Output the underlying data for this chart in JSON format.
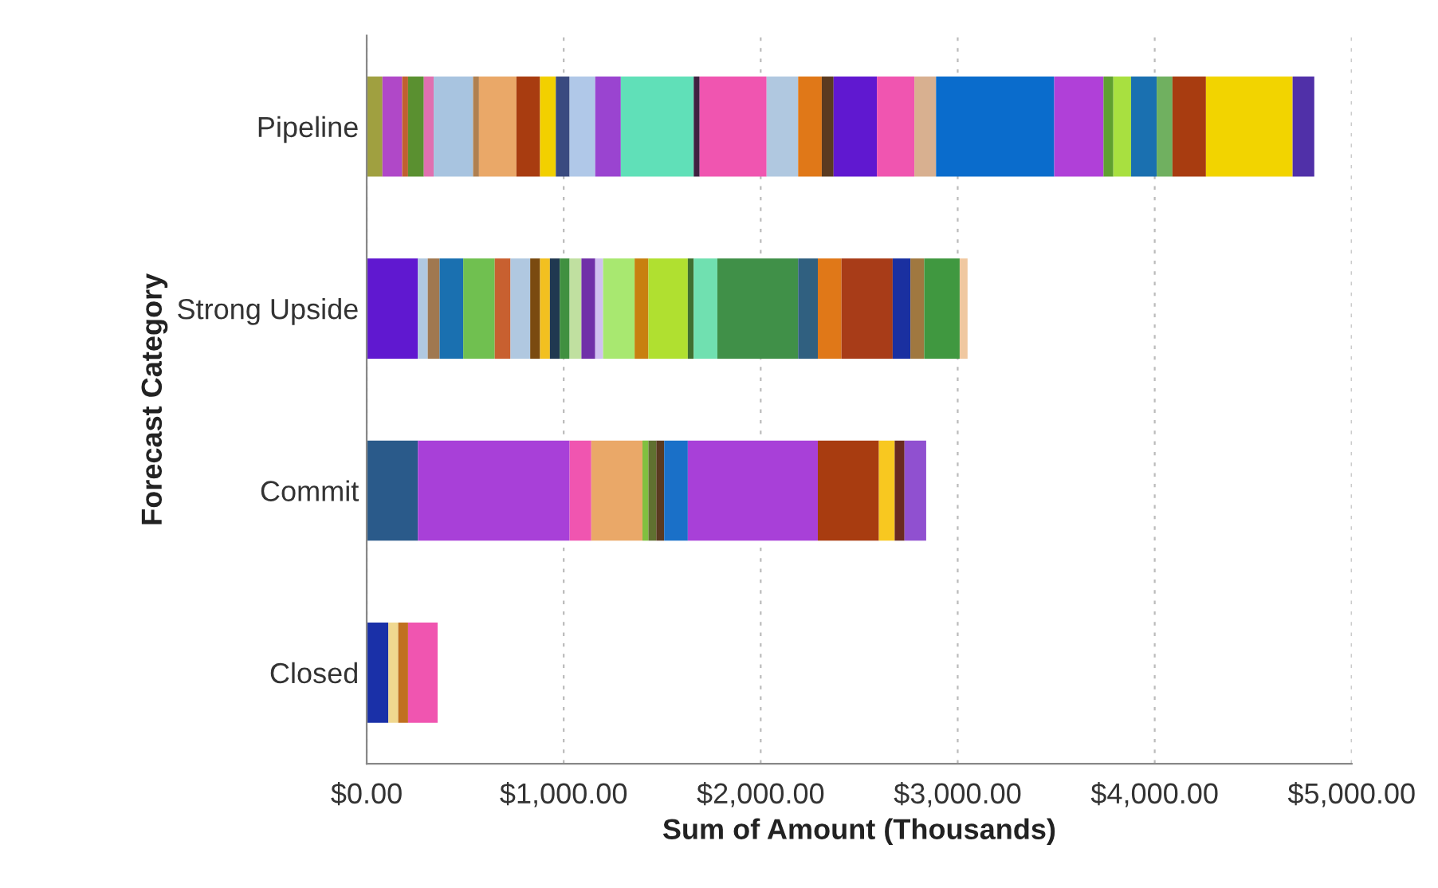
{
  "chart_data": {
    "type": "bar",
    "orientation": "horizontal",
    "stacked": true,
    "xlabel": "Sum of Amount (Thousands)",
    "ylabel": "Forecast Category",
    "categories": [
      "Pipeline",
      "Strong Upside",
      "Commit",
      "Closed"
    ],
    "xlim": [
      0,
      5000
    ],
    "xticks": [
      {
        "value": 0,
        "label": "$0.00"
      },
      {
        "value": 1000,
        "label": "$1,000.00"
      },
      {
        "value": 2000,
        "label": "$2,000.00"
      },
      {
        "value": 3000,
        "label": "$3,000.00"
      },
      {
        "value": 4000,
        "label": "$4,000.00"
      },
      {
        "value": 5000,
        "label": "$5,000.00"
      }
    ],
    "grid": "x",
    "series": [
      {
        "values": [
          80,
          260,
          260,
          110
        ],
        "colors": [
          "#a0a040",
          "#6018d0",
          "#2a5a8a",
          "#1a30a8"
        ]
      },
      {
        "values": [
          100,
          50,
          770,
          50
        ],
        "colors": [
          "#b048c8",
          "#b0c8e0",
          "#a840d8",
          "#f0d890"
        ]
      },
      {
        "values": [
          30,
          60,
          110,
          50
        ],
        "colors": [
          "#c06030",
          "#a07850",
          "#f055b0",
          "#c07020"
        ]
      },
      {
        "values": [
          80,
          120,
          260,
          150
        ],
        "colors": [
          "#5a9030",
          "#1a70b0",
          "#eaa868",
          "#f055b0"
        ]
      },
      {
        "values": [
          50,
          160,
          30,
          null
        ],
        "colors": [
          "#e070b0",
          "#70c050",
          "#80c040",
          null
        ]
      },
      {
        "values": [
          200,
          80,
          40,
          null
        ],
        "colors": [
          "#a8c4e0",
          "#c86030",
          "#607030",
          null
        ]
      },
      {
        "values": [
          30,
          100,
          40,
          null
        ],
        "colors": [
          "#b08050",
          "#b0c8e0",
          "#5a3a20",
          null
        ]
      },
      {
        "values": [
          190,
          50,
          120,
          null
        ],
        "colors": [
          "#eaa868",
          "#7a4a10",
          "#1a70c8",
          null
        ]
      },
      {
        "values": [
          120,
          50,
          660,
          null
        ],
        "colors": [
          "#a83c10",
          "#f2c020",
          "#a840d8",
          null
        ]
      },
      {
        "values": [
          80,
          50,
          310,
          null
        ],
        "colors": [
          "#f2d000",
          "#203850",
          "#a83c10",
          null
        ]
      },
      {
        "values": [
          70,
          50,
          80,
          null
        ],
        "colors": [
          "#3a4a80",
          "#409040",
          "#f8c820",
          null
        ]
      },
      {
        "values": [
          130,
          60,
          50,
          null
        ],
        "colors": [
          "#b0c8e8",
          "#c0e0a0",
          "#6a2a20",
          null
        ]
      },
      {
        "values": [
          130,
          70,
          110,
          null
        ],
        "colors": [
          "#9a44d0",
          "#7030a8",
          "#9050d0",
          null
        ]
      },
      {
        "values": [
          370,
          40,
          null,
          null
        ],
        "colors": [
          "#60e0b8",
          "#d0c0f0",
          null,
          null
        ]
      },
      {
        "values": [
          30,
          160,
          null,
          null
        ],
        "colors": [
          "#402040",
          "#a8e870",
          null,
          null
        ]
      },
      {
        "values": [
          340,
          70,
          null,
          null
        ],
        "colors": [
          "#f055b0",
          "#c88010",
          null,
          null
        ]
      },
      {
        "values": [
          160,
          200,
          null,
          null
        ],
        "colors": [
          "#b0c8e0",
          "#b0e030",
          null,
          null
        ]
      },
      {
        "values": [
          120,
          30,
          null,
          null
        ],
        "colors": [
          "#e07818",
          "#407030",
          null,
          null
        ]
      },
      {
        "values": [
          60,
          120,
          null,
          null
        ],
        "colors": [
          "#5a3a20",
          "#70e0b0",
          null,
          null
        ]
      },
      {
        "values": [
          220,
          410,
          null,
          null
        ],
        "colors": [
          "#6018d0",
          "#409048",
          null,
          null
        ]
      },
      {
        "values": [
          190,
          100,
          null,
          null
        ],
        "colors": [
          "#f055b0",
          "#306080",
          null,
          null
        ]
      },
      {
        "values": [
          110,
          120,
          null,
          null
        ],
        "colors": [
          "#d8b090",
          "#e07818",
          null,
          null
        ]
      },
      {
        "values": [
          600,
          260,
          null,
          null
        ],
        "colors": [
          "#0a6ccc",
          "#a83c18",
          null,
          null
        ]
      },
      {
        "values": [
          250,
          90,
          null,
          null
        ],
        "colors": [
          "#b040d8",
          "#1a30a0",
          null,
          null
        ]
      },
      {
        "values": [
          50,
          70,
          null,
          null
        ],
        "colors": [
          "#60a030",
          "#a07840",
          null,
          null
        ]
      },
      {
        "values": [
          90,
          180,
          null,
          null
        ],
        "colors": [
          "#a8e040",
          "#409840",
          null,
          null
        ]
      },
      {
        "values": [
          130,
          40,
          null,
          null
        ],
        "colors": [
          "#1a70b0",
          "#f0c8a0",
          null,
          null
        ]
      },
      {
        "values": [
          80,
          null,
          null,
          null
        ],
        "colors": [
          "#70b060",
          null,
          null,
          null
        ]
      },
      {
        "values": [
          170,
          null,
          null,
          null
        ],
        "colors": [
          "#a83c10",
          null,
          null,
          null
        ]
      },
      {
        "values": [
          440,
          null,
          null,
          null
        ],
        "colors": [
          "#f2d400",
          null,
          null,
          null
        ]
      },
      {
        "values": [
          110,
          null,
          null,
          null
        ],
        "colors": [
          "#5030a8",
          null,
          null,
          null
        ]
      }
    ]
  }
}
